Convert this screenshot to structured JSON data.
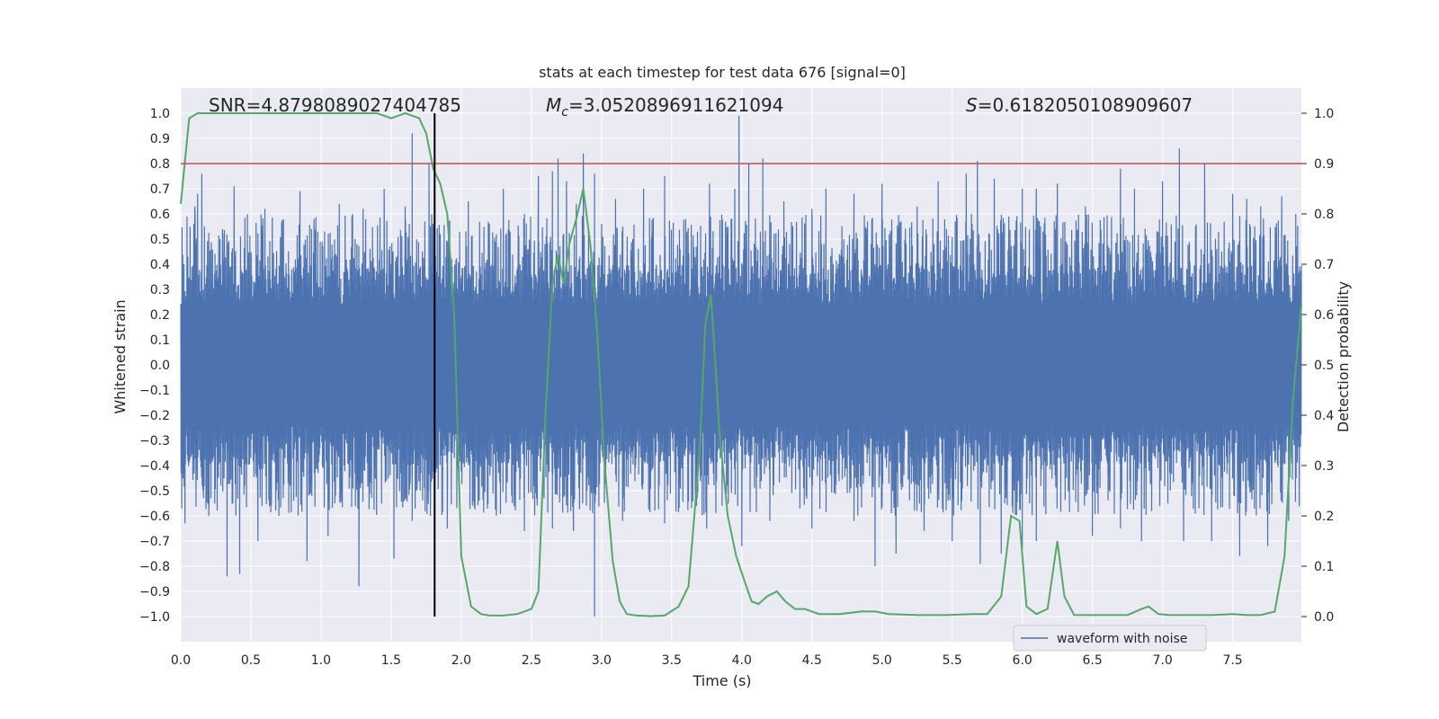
{
  "chart_data": {
    "type": "line",
    "title": "stats at each timestep for test data 676 [signal=0]",
    "xlabel": "Time (s)",
    "ylabel_left": "Whitened strain",
    "ylabel_right": "Detection probability",
    "xlim": [
      0.0,
      7.99
    ],
    "ylim_left": [
      -1.1,
      1.1
    ],
    "ylim_right": [
      -0.05,
      1.05
    ],
    "x_ticks": [
      "0.0",
      "0.5",
      "1.0",
      "1.5",
      "2.0",
      "2.5",
      "3.0",
      "3.5",
      "4.0",
      "4.5",
      "5.0",
      "5.5",
      "6.0",
      "6.5",
      "7.0",
      "7.5"
    ],
    "x_tick_values": [
      0.0,
      0.5,
      1.0,
      1.5,
      2.0,
      2.5,
      3.0,
      3.5,
      4.0,
      4.5,
      5.0,
      5.5,
      6.0,
      6.5,
      7.0,
      7.5
    ],
    "y_ticks_left": [
      "1.0",
      "0.9",
      "0.8",
      "0.7",
      "0.6",
      "0.5",
      "0.4",
      "0.3",
      "0.2",
      "0.1",
      "0.0",
      "−0.1",
      "−0.2",
      "−0.3",
      "−0.4",
      "−0.5",
      "−0.6",
      "−0.7",
      "−0.8",
      "−0.9",
      "−1.0"
    ],
    "y_tick_values_left": [
      1.0,
      0.9,
      0.8,
      0.7,
      0.6,
      0.5,
      0.4,
      0.3,
      0.2,
      0.1,
      0.0,
      -0.1,
      -0.2,
      -0.3,
      -0.4,
      -0.5,
      -0.6,
      -0.7,
      -0.8,
      -0.9,
      -1.0
    ],
    "y_ticks_right": [
      "1.0",
      "0.9",
      "0.8",
      "0.7",
      "0.6",
      "0.5",
      "0.4",
      "0.3",
      "0.2",
      "0.1",
      "0.0"
    ],
    "y_tick_values_right": [
      1.0,
      0.9,
      0.8,
      0.7,
      0.6,
      0.5,
      0.4,
      0.3,
      0.2,
      0.1,
      0.0
    ],
    "grid": true,
    "legend_position": "lower-right",
    "threshold_line": {
      "y_right": 0.9,
      "color": "#c44e52"
    },
    "vertical_line": {
      "x": 1.81,
      "y_left_range": [
        -1.0,
        1.0
      ],
      "color": "#000000"
    },
    "annotations": {
      "snr": {
        "label": "SNR",
        "value": "4.879808902740478​5"
      },
      "mc": {
        "label": "M",
        "subscript": "c",
        "value": "3.0520896911621094"
      },
      "s": {
        "label": "S",
        "value": "0.6182050108909607"
      }
    },
    "series": [
      {
        "name": "waveform with noise",
        "axis": "left",
        "color": "#4c72b0",
        "kind": "noise-envelope",
        "envelope": {
          "core_abs": 0.4,
          "typical_max": 0.6,
          "duration": 7.99
        },
        "peaks": [
          [
            0.05,
            0.43
          ],
          [
            0.1,
            0.63
          ],
          [
            0.12,
            0.68
          ],
          [
            0.15,
            0.76
          ],
          [
            0.3,
            0.52
          ],
          [
            0.38,
            0.71
          ],
          [
            0.6,
            0.62
          ],
          [
            0.85,
            0.69
          ],
          [
            0.95,
            0.58
          ],
          [
            1.13,
            0.64
          ],
          [
            1.3,
            0.62
          ],
          [
            1.45,
            0.7
          ],
          [
            1.6,
            0.63
          ],
          [
            1.65,
            0.92
          ],
          [
            1.77,
            0.8
          ],
          [
            1.85,
            0.52
          ],
          [
            2.05,
            0.65
          ],
          [
            2.2,
            0.56
          ],
          [
            2.3,
            0.7
          ],
          [
            2.45,
            0.6
          ],
          [
            2.55,
            0.75
          ],
          [
            2.65,
            0.77
          ],
          [
            2.69,
            0.82
          ],
          [
            2.75,
            0.73
          ],
          [
            2.82,
            0.64
          ],
          [
            2.87,
            0.84
          ],
          [
            2.95,
            0.76
          ],
          [
            3.1,
            0.66
          ],
          [
            3.3,
            0.7
          ],
          [
            3.45,
            0.75
          ],
          [
            3.6,
            0.58
          ],
          [
            3.77,
            0.72
          ],
          [
            3.95,
            0.7
          ],
          [
            3.98,
            0.99
          ],
          [
            4.05,
            0.8
          ],
          [
            4.15,
            0.82
          ],
          [
            4.3,
            0.65
          ],
          [
            4.5,
            0.62
          ],
          [
            4.6,
            0.7
          ],
          [
            4.8,
            0.68
          ],
          [
            5.0,
            0.72
          ],
          [
            5.25,
            0.63
          ],
          [
            5.4,
            0.73
          ],
          [
            5.6,
            0.76
          ],
          [
            5.68,
            0.81
          ],
          [
            5.8,
            0.74
          ],
          [
            6.0,
            0.7
          ],
          [
            6.1,
            0.7
          ],
          [
            6.25,
            0.72
          ],
          [
            6.45,
            0.63
          ],
          [
            6.7,
            0.78
          ],
          [
            6.8,
            0.7
          ],
          [
            7.0,
            0.73
          ],
          [
            7.12,
            0.86
          ],
          [
            7.3,
            0.8
          ],
          [
            7.5,
            0.68
          ],
          [
            7.6,
            0.66
          ],
          [
            7.7,
            0.63
          ],
          [
            7.85,
            0.67
          ],
          [
            7.95,
            0.6
          ]
        ],
        "troughs": [
          [
            0.03,
            -0.63
          ],
          [
            0.2,
            -0.6
          ],
          [
            0.33,
            -0.84
          ],
          [
            0.42,
            -0.83
          ],
          [
            0.55,
            -0.7
          ],
          [
            0.7,
            -0.6
          ],
          [
            0.9,
            -0.78
          ],
          [
            1.05,
            -0.68
          ],
          [
            1.27,
            -0.88
          ],
          [
            1.52,
            -0.77
          ],
          [
            1.65,
            -0.62
          ],
          [
            1.78,
            -0.6
          ],
          [
            1.9,
            -0.65
          ],
          [
            2.25,
            -0.6
          ],
          [
            2.45,
            -0.66
          ],
          [
            2.65,
            -0.65
          ],
          [
            2.8,
            -0.66
          ],
          [
            2.95,
            -1.0
          ],
          [
            3.15,
            -0.62
          ],
          [
            3.45,
            -0.63
          ],
          [
            3.75,
            -0.65
          ],
          [
            4.0,
            -0.72
          ],
          [
            4.2,
            -0.62
          ],
          [
            4.5,
            -0.65
          ],
          [
            4.8,
            -0.62
          ],
          [
            4.95,
            -0.8
          ],
          [
            5.1,
            -0.75
          ],
          [
            5.3,
            -0.66
          ],
          [
            5.5,
            -0.7
          ],
          [
            5.7,
            -0.79
          ],
          [
            5.85,
            -0.75
          ],
          [
            6.0,
            -0.73
          ],
          [
            6.1,
            -0.7
          ],
          [
            6.5,
            -0.68
          ],
          [
            6.7,
            -0.65
          ],
          [
            6.85,
            -0.7
          ],
          [
            7.15,
            -0.7
          ],
          [
            7.35,
            -0.7
          ],
          [
            7.55,
            -0.76
          ],
          [
            7.75,
            -0.72
          ],
          [
            7.9,
            -0.62
          ]
        ]
      },
      {
        "name": "",
        "axis": "right",
        "color": "#55a868",
        "x": [
          0.0,
          0.06,
          0.12,
          0.2,
          0.4,
          0.6,
          0.8,
          1.0,
          1.2,
          1.4,
          1.5,
          1.6,
          1.7,
          1.75,
          1.8,
          1.85,
          1.9,
          1.95,
          2.0,
          2.07,
          2.14,
          2.2,
          2.3,
          2.4,
          2.5,
          2.55,
          2.6,
          2.65,
          2.69,
          2.73,
          2.77,
          2.82,
          2.87,
          2.92,
          2.97,
          3.02,
          3.08,
          3.13,
          3.18,
          3.25,
          3.35,
          3.45,
          3.55,
          3.62,
          3.7,
          3.74,
          3.78,
          3.81,
          3.84,
          3.9,
          3.96,
          4.02,
          4.07,
          4.12,
          4.18,
          4.25,
          4.31,
          4.38,
          4.45,
          4.55,
          4.7,
          4.85,
          4.95,
          5.05,
          5.25,
          5.45,
          5.65,
          5.75,
          5.85,
          5.92,
          5.98,
          6.03,
          6.1,
          6.18,
          6.25,
          6.3,
          6.37,
          6.45,
          6.6,
          6.75,
          6.85,
          6.9,
          6.97,
          7.05,
          7.2,
          7.35,
          7.5,
          7.6,
          7.7,
          7.8,
          7.87,
          7.93,
          7.99
        ],
        "values": [
          0.82,
          0.99,
          1.0,
          1.0,
          1.0,
          1.0,
          1.0,
          1.0,
          1.0,
          1.0,
          0.99,
          1.0,
          0.99,
          0.96,
          0.89,
          0.86,
          0.8,
          0.6,
          0.12,
          0.02,
          0.005,
          0.002,
          0.002,
          0.005,
          0.015,
          0.05,
          0.4,
          0.66,
          0.72,
          0.66,
          0.74,
          0.79,
          0.85,
          0.74,
          0.56,
          0.31,
          0.11,
          0.03,
          0.005,
          0.002,
          0.001,
          0.002,
          0.02,
          0.06,
          0.33,
          0.58,
          0.64,
          0.51,
          0.37,
          0.2,
          0.12,
          0.07,
          0.03,
          0.025,
          0.04,
          0.05,
          0.03,
          0.015,
          0.015,
          0.005,
          0.005,
          0.01,
          0.01,
          0.005,
          0.003,
          0.003,
          0.005,
          0.005,
          0.04,
          0.2,
          0.19,
          0.02,
          0.005,
          0.015,
          0.15,
          0.04,
          0.003,
          0.003,
          0.003,
          0.003,
          0.015,
          0.02,
          0.005,
          0.003,
          0.003,
          0.003,
          0.005,
          0.003,
          0.003,
          0.01,
          0.12,
          0.43,
          0.62
        ]
      }
    ]
  }
}
